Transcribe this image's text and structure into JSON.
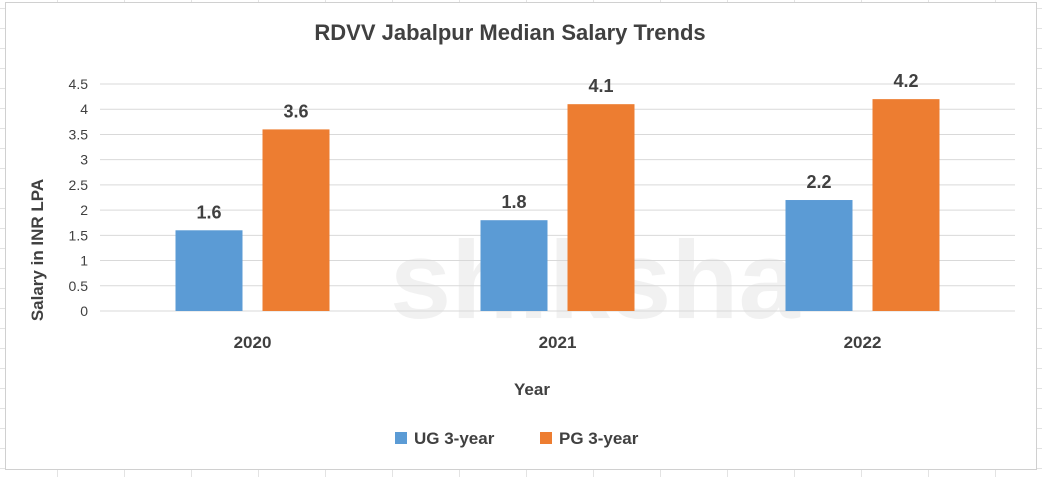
{
  "colors": {
    "ug": "#5b9bd5",
    "pg": "#ed7d31",
    "grid": "#d9d9d9",
    "text": "#404040"
  },
  "watermark": "shiksha",
  "chart_data": {
    "type": "bar",
    "title": "RDVV Jabalpur Median Salary Trends",
    "xlabel": "Year",
    "ylabel": "Salary in INR LPA",
    "categories": [
      "2020",
      "2021",
      "2022"
    ],
    "series": [
      {
        "name": "UG 3-year",
        "values": [
          1.6,
          1.8,
          2.2
        ],
        "color": "#5b9bd5"
      },
      {
        "name": "PG 3-year",
        "values": [
          3.6,
          4.1,
          4.2
        ],
        "color": "#ed7d31"
      }
    ],
    "ylim": [
      0,
      4.5
    ],
    "yticks": [
      "0",
      "0.5",
      "1",
      "1.5",
      "2",
      "2.5",
      "3",
      "3.5",
      "4",
      "4.5"
    ],
    "grid": true,
    "legend_position": "bottom"
  }
}
